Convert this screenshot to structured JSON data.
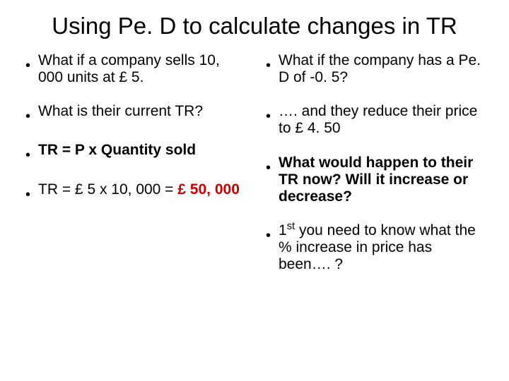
{
  "title": "Using Pe. D to calculate changes in TR",
  "left": [
    {
      "html": "What if a company sells 10, 000 units at £ 5."
    },
    {
      "html": "What is their current TR?"
    },
    {
      "html": "<span class=\"bold\">TR = P x Quantity sold</span>"
    },
    {
      "html": "TR = £ 5 x 10, 000 = <span class=\"bold red\">£ 50, 000</span>"
    }
  ],
  "right": [
    {
      "html": "What if the company has a Pe. D of -0. 5?"
    },
    {
      "html": "…. and they reduce their price to £ 4. 50"
    },
    {
      "html": "<span class=\"bold\">What would happen to their TR now? Will it increase or decrease?</span>"
    },
    {
      "html": "1<span class=\"sup\">st</span> you need to know what the % increase in price has been…. ?"
    }
  ],
  "colors": {
    "text": "#000000",
    "accent": "#cc0000",
    "background": "#ffffff"
  }
}
